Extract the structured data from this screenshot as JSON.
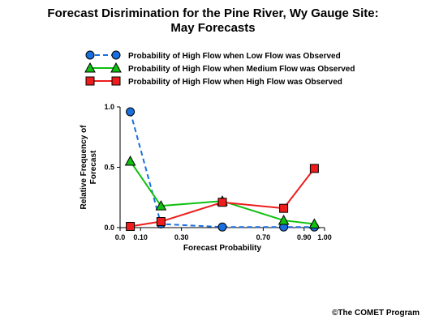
{
  "page": {
    "title_line1": "Forecast Disrimination for the Pine River, Wy Gauge Site:",
    "title_line2": "May Forecasts",
    "copyright": "©The COMET Program"
  },
  "chart_data": {
    "type": "line",
    "title": "Forecast Disrimination for the Pine River, Wy Gauge Site: May Forecasts",
    "xlabel": "Forecast Probability",
    "ylabel": "Relative Frequency of Forecast",
    "xlim": [
      0,
      1
    ],
    "ylim": [
      0,
      1
    ],
    "x_ticks": [
      {
        "value": 0.0,
        "label": "0.0"
      },
      {
        "value": 0.1,
        "label": "0.10"
      },
      {
        "value": 0.3,
        "label": "0.30"
      },
      {
        "value": 0.7,
        "label": "0.70"
      },
      {
        "value": 0.9,
        "label": "0.90"
      },
      {
        "value": 1.0,
        "label": "1.00"
      }
    ],
    "y_ticks": [
      {
        "value": 0.0,
        "label": "0.0"
      },
      {
        "value": 0.5,
        "label": "0.5"
      },
      {
        "value": 1.0,
        "label": "1.0"
      }
    ],
    "legend_position": "top",
    "grid": false,
    "series": [
      {
        "name": "Probability of High Flow when Low Flow was Observed",
        "color": "#1a6fe0",
        "line_style": "dashed",
        "marker": "circle",
        "points": [
          {
            "x": 0.05,
            "y": 0.96
          },
          {
            "x": 0.2,
            "y": 0.03
          },
          {
            "x": 0.5,
            "y": 0.005
          },
          {
            "x": 0.8,
            "y": 0.005
          },
          {
            "x": 0.95,
            "y": 0.005
          }
        ]
      },
      {
        "name": "Probability of High Flow when Medium Flow was Observed",
        "color": "#10c010",
        "line_style": "solid",
        "marker": "triangle",
        "points": [
          {
            "x": 0.05,
            "y": 0.55
          },
          {
            "x": 0.2,
            "y": 0.18
          },
          {
            "x": 0.5,
            "y": 0.22
          },
          {
            "x": 0.8,
            "y": 0.06
          },
          {
            "x": 0.95,
            "y": 0.03
          }
        ]
      },
      {
        "name": "Probability of High Flow when High Flow was Observed",
        "color": "#ee1c1c",
        "line_style": "solid",
        "marker": "square",
        "points": [
          {
            "x": 0.05,
            "y": 0.01
          },
          {
            "x": 0.2,
            "y": 0.05
          },
          {
            "x": 0.5,
            "y": 0.21
          },
          {
            "x": 0.8,
            "y": 0.16
          },
          {
            "x": 0.95,
            "y": 0.49
          }
        ]
      }
    ]
  }
}
